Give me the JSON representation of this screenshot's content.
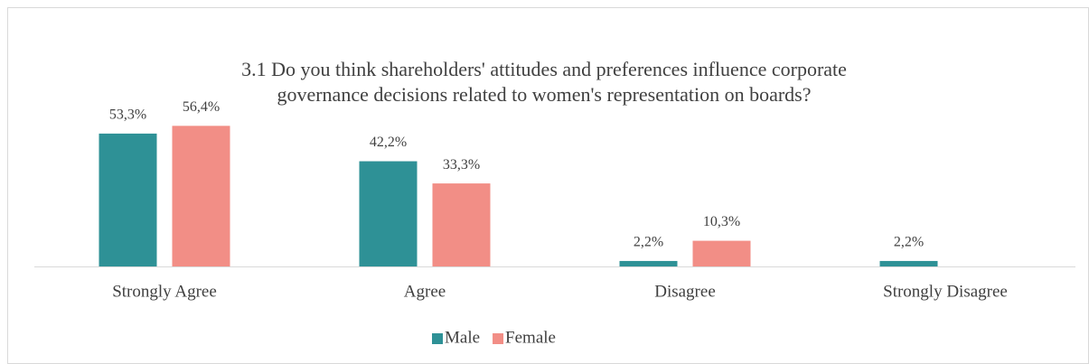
{
  "chart_data": {
    "type": "bar",
    "title": [
      "3.1 Do you think shareholders' attitudes and preferences influence corporate",
      "governance decisions related to women's representation on boards?"
    ],
    "categories": [
      "Strongly Agree",
      "Agree",
      "Disagree",
      "Strongly Disagree"
    ],
    "series": [
      {
        "name": "Male",
        "color": "#2e9196",
        "values": [
          53.3,
          42.2,
          2.2,
          2.2
        ],
        "value_labels": [
          "53,3%",
          "42,2%",
          "2,2%",
          "2,2%"
        ]
      },
      {
        "name": "Female",
        "color": "#f28e86",
        "values": [
          56.4,
          33.3,
          10.3,
          null
        ],
        "value_labels": [
          "56,4%",
          "33,3%",
          "10,3%",
          null
        ]
      }
    ],
    "legend": "bottom"
  }
}
